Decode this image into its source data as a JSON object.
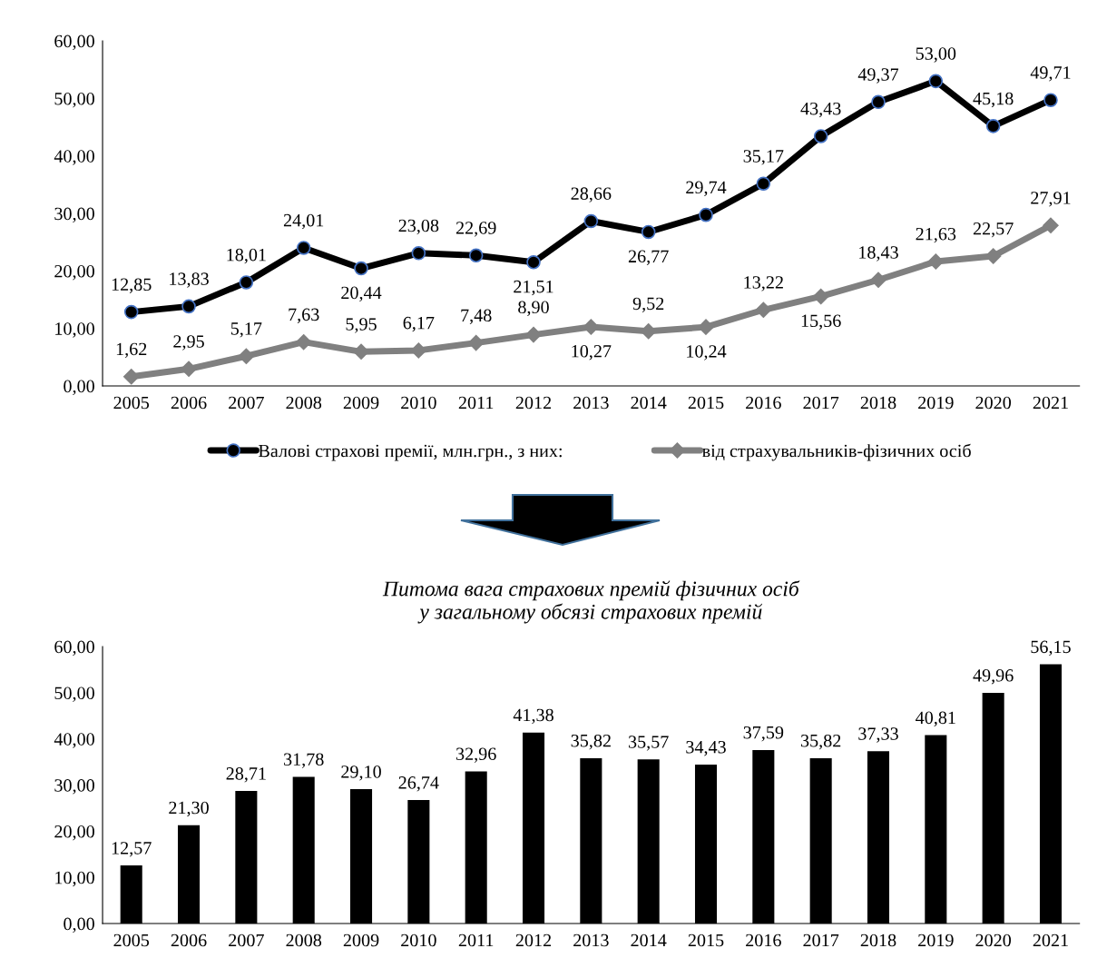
{
  "chart_data": [
    {
      "type": "line",
      "categories": [
        "2005",
        "2006",
        "2007",
        "2008",
        "2009",
        "2010",
        "2011",
        "2012",
        "2013",
        "2014",
        "2015",
        "2016",
        "2017",
        "2018",
        "2019",
        "2020",
        "2021"
      ],
      "ylim": [
        0,
        60
      ],
      "yticks": [
        {
          "value": 0,
          "label": "0,00"
        },
        {
          "value": 10,
          "label": "10,00"
        },
        {
          "value": 20,
          "label": "20,00"
        },
        {
          "value": 30,
          "label": "30,00"
        },
        {
          "value": 40,
          "label": "40,00"
        },
        {
          "value": 50,
          "label": "50,00"
        },
        {
          "value": 60,
          "label": "60,00"
        }
      ],
      "grid": false,
      "legend": "bottom",
      "line_style": "solid",
      "series": [
        {
          "name": "Валові страхові премії, млн.грн., з них:",
          "color": "#000000",
          "marker": "circle",
          "values": [
            12.85,
            13.83,
            18.01,
            24.01,
            20.44,
            23.08,
            22.69,
            21.51,
            28.66,
            26.77,
            29.74,
            35.17,
            43.43,
            49.37,
            53.0,
            45.18,
            49.71
          ],
          "value_labels": [
            "12,85",
            "13,83",
            "18,01",
            "24,01",
            "20,44",
            "23,08",
            "22,69",
            "21,51",
            "28,66",
            "26,77",
            "29,74",
            "35,17",
            "43,43",
            "49,37",
            "53,00",
            "45,18",
            "49,71"
          ]
        },
        {
          "name": "від страхувальників-фізичних осіб",
          "color": "#808080",
          "marker": "diamond",
          "values": [
            1.62,
            2.95,
            5.17,
            7.63,
            5.95,
            6.17,
            7.48,
            8.9,
            10.27,
            9.52,
            10.24,
            13.22,
            15.56,
            18.43,
            21.63,
            22.57,
            27.91
          ],
          "value_labels": [
            "1,62",
            "2,95",
            "5,17",
            "7,63",
            "5,95",
            "6,17",
            "7,48",
            "8,90",
            "10,27",
            "9,52",
            "10,24",
            "13,22",
            "15,56",
            "18,43",
            "21,63",
            "22,57",
            "27,91"
          ]
        }
      ]
    },
    {
      "type": "bar",
      "title": "Питома вага страхових премій фізичних осіб\nу загальному обсязі страхових премій",
      "categories": [
        "2005",
        "2006",
        "2007",
        "2008",
        "2009",
        "2010",
        "2011",
        "2012",
        "2013",
        "2014",
        "2015",
        "2016",
        "2017",
        "2018",
        "2019",
        "2020",
        "2021"
      ],
      "ylim": [
        0,
        60
      ],
      "yticks": [
        {
          "value": 0,
          "label": "0,00"
        },
        {
          "value": 10,
          "label": "10,00"
        },
        {
          "value": 20,
          "label": "20,00"
        },
        {
          "value": 30,
          "label": "30,00"
        },
        {
          "value": 40,
          "label": "40,00"
        },
        {
          "value": 50,
          "label": "50,00"
        },
        {
          "value": 60,
          "label": "60,00"
        }
      ],
      "grid": false,
      "color": "#000000",
      "values": [
        12.57,
        21.3,
        28.71,
        31.78,
        29.1,
        26.74,
        32.96,
        41.38,
        35.82,
        35.57,
        34.43,
        37.59,
        35.82,
        37.33,
        40.81,
        49.96,
        56.15
      ],
      "value_labels": [
        "12,57",
        "21,30",
        "28,71",
        "31,78",
        "29,10",
        "26,74",
        "32,96",
        "41,38",
        "35,82",
        "35,57",
        "34,43",
        "37,59",
        "35,82",
        "37,33",
        "40,81",
        "49,96",
        "56,15"
      ]
    }
  ]
}
